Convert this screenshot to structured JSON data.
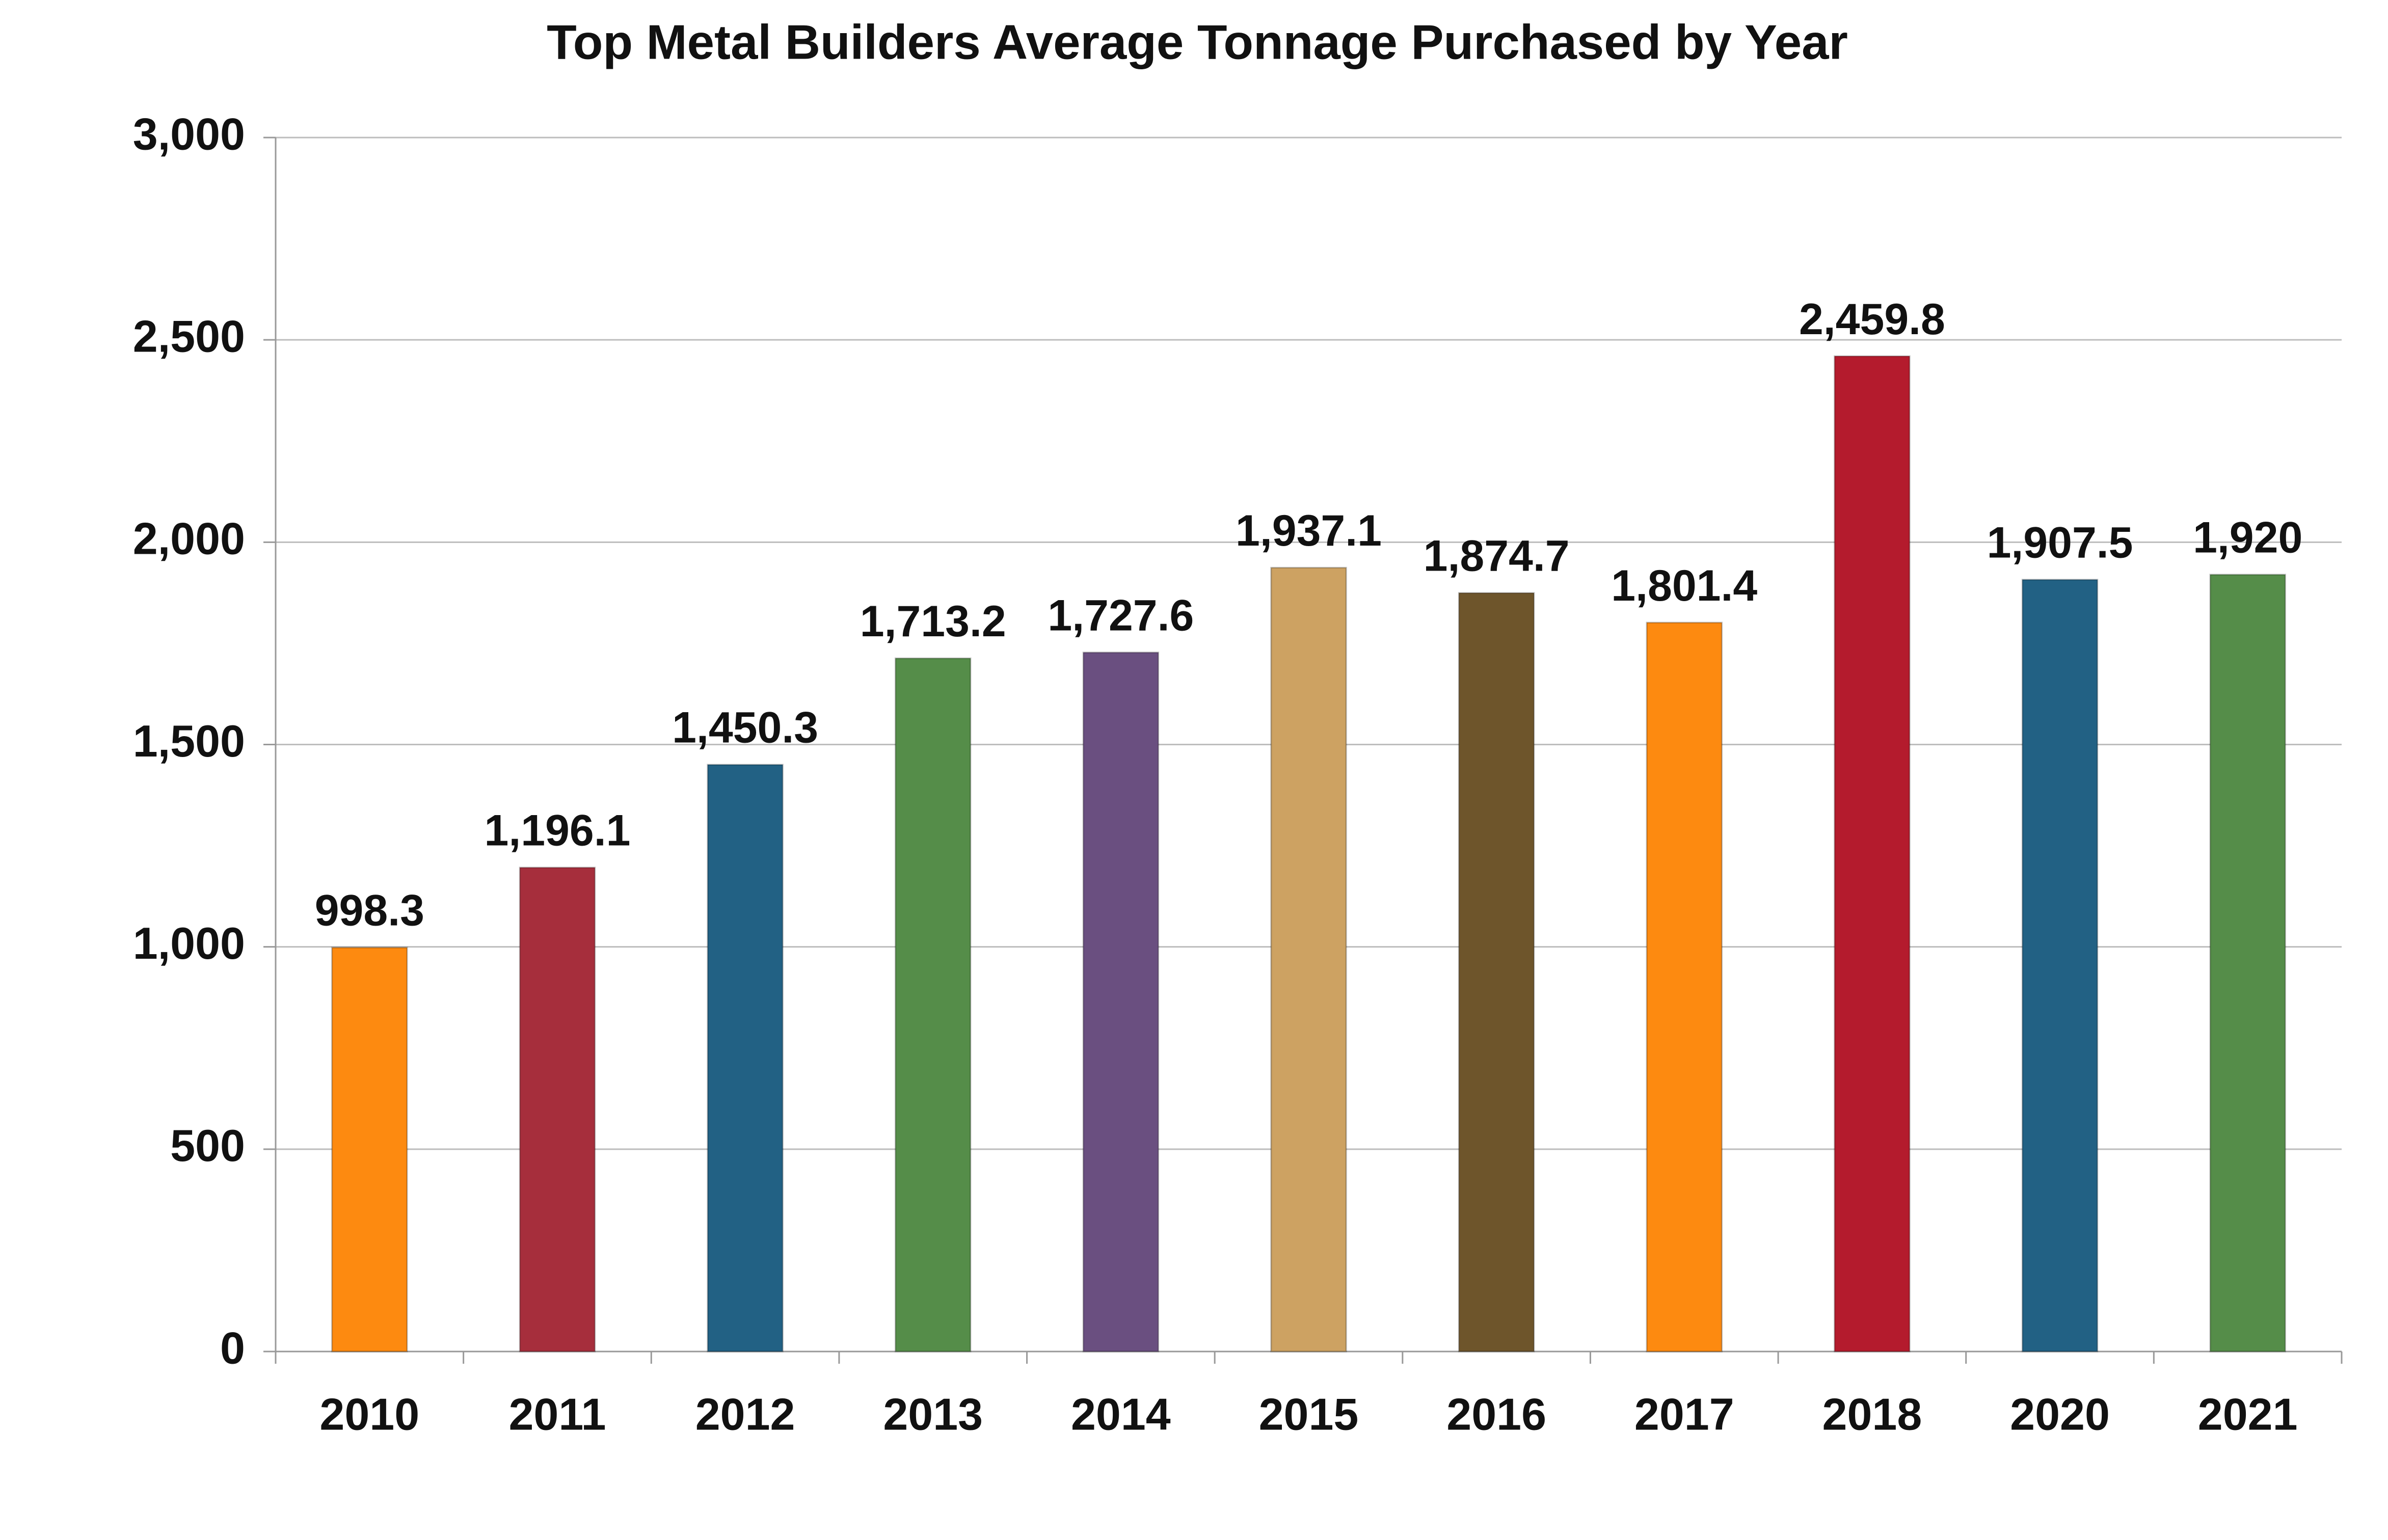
{
  "chart_data": {
    "type": "bar",
    "title": "Top Metal Builders Average Tonnage Purchased by Year",
    "categories": [
      "2010",
      "2011",
      "2012",
      "2013",
      "2014",
      "2015",
      "2016",
      "2017",
      "2018",
      "2020",
      "2021"
    ],
    "values": [
      998.3,
      1196.1,
      1450.3,
      1713.2,
      1727.6,
      1937.1,
      1874.7,
      1801.4,
      2459.8,
      1907.5,
      1920
    ],
    "value_labels": [
      "998.3",
      "1,196.1",
      "1,450.3",
      "1,713.2",
      "1,727.6",
      "1,937.1",
      "1,874.7",
      "1,801.4",
      "2,459.8",
      "1,907.5",
      "1,920"
    ],
    "colors": [
      "#fd8a10",
      "#a62e3c",
      "#226184",
      "#558d49",
      "#6a4f80",
      "#cda262",
      "#6e552b",
      "#fd8a10",
      "#b41b2d",
      "#226184",
      "#558d49"
    ],
    "ylim": [
      0,
      3000
    ],
    "yticks": [
      0,
      500,
      {
        "value": 1000,
        "label": "1,000"
      },
      {
        "value": 1500,
        "label": "1,500"
      },
      {
        "value": 2000,
        "label": "2,000"
      },
      {
        "value": 2500,
        "label": "2,500"
      },
      {
        "value": 3000,
        "label": "3,000"
      }
    ],
    "grid": true
  }
}
